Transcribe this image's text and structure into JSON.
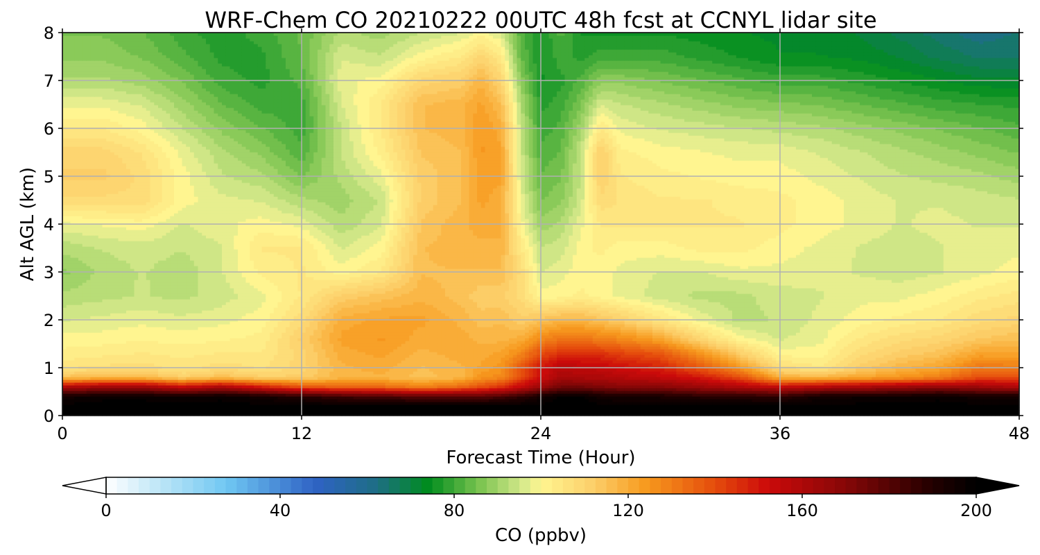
{
  "chart_data": {
    "type": "heatmap",
    "title": "WRF-Chem CO  20210222 00UTC 48h fcst at CCNYL lidar site",
    "xlabel": "Forecast Time (Hour)",
    "ylabel": "Alt AGL (km)",
    "xlim": [
      0,
      48
    ],
    "ylim": [
      0,
      8
    ],
    "x_ticks": [
      "0",
      "12",
      "24",
      "36",
      "48"
    ],
    "y_ticks": [
      "0",
      "1",
      "2",
      "3",
      "4",
      "5",
      "6",
      "7",
      "8"
    ],
    "grid": true,
    "colorbar": {
      "label": "CO  (ppbv)",
      "ticks": [
        "0",
        "40",
        "80",
        "120",
        "160",
        "200"
      ],
      "range": [
        0,
        200
      ],
      "extend": "both",
      "stops": [
        {
          "value": 0,
          "color": "#ffffff"
        },
        {
          "value": 12,
          "color": "#bfe6f7"
        },
        {
          "value": 28,
          "color": "#6ec6f2"
        },
        {
          "value": 48,
          "color": "#2f62c4"
        },
        {
          "value": 62,
          "color": "#1e6e86"
        },
        {
          "value": 74,
          "color": "#008c1e"
        },
        {
          "value": 86,
          "color": "#7cc450"
        },
        {
          "value": 96,
          "color": "#d8ea8c"
        },
        {
          "value": 100,
          "color": "#fff590"
        },
        {
          "value": 112,
          "color": "#fccf6a"
        },
        {
          "value": 124,
          "color": "#f79a1e"
        },
        {
          "value": 140,
          "color": "#e54c0c"
        },
        {
          "value": 152,
          "color": "#cc0a0a"
        },
        {
          "value": 170,
          "color": "#860707"
        },
        {
          "value": 190,
          "color": "#220000"
        },
        {
          "value": 200,
          "color": "#000000"
        }
      ]
    },
    "x": [
      0,
      2,
      4,
      6,
      8,
      10,
      12,
      14,
      16,
      18,
      20,
      21,
      22,
      23,
      24,
      25,
      26,
      27,
      28,
      30,
      32,
      34,
      36,
      38,
      40,
      42,
      44,
      46,
      48
    ],
    "y": [
      0,
      0.2,
      0.4,
      0.6,
      0.8,
      1.0,
      1.3,
      1.6,
      2.0,
      2.5,
      3.0,
      3.5,
      4.0,
      4.5,
      5.0,
      5.5,
      6.0,
      6.5,
      7.0,
      7.5,
      8.0
    ],
    "z": [
      [
        200,
        200,
        200,
        200,
        200,
        200,
        200,
        200,
        200,
        200,
        200,
        200,
        200,
        200,
        200,
        200,
        200,
        200,
        200,
        200,
        200,
        200,
        200,
        200,
        200,
        200,
        200,
        200,
        200
      ],
      [
        200,
        200,
        200,
        200,
        200,
        200,
        200,
        200,
        200,
        200,
        200,
        200,
        200,
        200,
        200,
        200,
        200,
        200,
        200,
        200,
        200,
        200,
        200,
        200,
        200,
        200,
        200,
        200,
        200
      ],
      [
        195,
        198,
        198,
        196,
        198,
        195,
        190,
        185,
        183,
        180,
        180,
        180,
        183,
        188,
        195,
        200,
        200,
        195,
        193,
        193,
        190,
        190,
        188,
        195,
        196,
        196,
        198,
        195,
        195
      ],
      [
        160,
        165,
        165,
        155,
        162,
        150,
        140,
        135,
        135,
        130,
        135,
        140,
        145,
        155,
        165,
        175,
        175,
        172,
        170,
        170,
        165,
        160,
        155,
        160,
        162,
        165,
        168,
        165,
        160
      ],
      [
        115,
        118,
        118,
        112,
        116,
        112,
        112,
        118,
        118,
        115,
        118,
        125,
        128,
        140,
        152,
        162,
        160,
        160,
        158,
        155,
        150,
        140,
        120,
        118,
        122,
        125,
        130,
        140,
        140
      ],
      [
        106,
        107,
        108,
        105,
        108,
        106,
        110,
        118,
        120,
        116,
        118,
        122,
        125,
        138,
        150,
        158,
        156,
        155,
        152,
        148,
        138,
        125,
        108,
        104,
        112,
        118,
        122,
        132,
        130
      ],
      [
        102,
        103,
        104,
        103,
        104,
        104,
        110,
        120,
        122,
        118,
        120,
        120,
        122,
        128,
        140,
        145,
        145,
        145,
        142,
        138,
        125,
        112,
        100,
        100,
        108,
        112,
        115,
        122,
        122
      ],
      [
        100,
        100,
        101,
        100,
        101,
        102,
        112,
        122,
        124,
        120,
        120,
        118,
        118,
        120,
        128,
        132,
        132,
        130,
        128,
        122,
        110,
        100,
        96,
        98,
        104,
        108,
        110,
        114,
        116
      ],
      [
        96,
        97,
        98,
        97,
        98,
        100,
        108,
        120,
        122,
        122,
        118,
        115,
        116,
        112,
        115,
        118,
        118,
        115,
        112,
        105,
        98,
        93,
        94,
        97,
        100,
        102,
        104,
        108,
        110
      ],
      [
        92,
        93,
        94,
        93,
        95,
        98,
        104,
        112,
        115,
        118,
        115,
        112,
        112,
        108,
        100,
        100,
        102,
        100,
        98,
        95,
        93,
        93,
        95,
        96,
        98,
        98,
        100,
        103,
        105
      ],
      [
        88,
        92,
        94,
        92,
        96,
        102,
        104,
        100,
        104,
        116,
        116,
        116,
        116,
        108,
        96,
        98,
        100,
        100,
        98,
        96,
        96,
        98,
        98,
        97,
        96,
        95,
        96,
        98,
        100
      ],
      [
        92,
        94,
        95,
        94,
        96,
        104,
        104,
        96,
        100,
        116,
        118,
        118,
        118,
        104,
        94,
        95,
        100,
        102,
        100,
        100,
        102,
        102,
        100,
        98,
        96,
        95,
        96,
        98,
        98
      ],
      [
        98,
        99,
        100,
        96,
        98,
        100,
        98,
        92,
        96,
        114,
        118,
        120,
        120,
        100,
        90,
        92,
        98,
        104,
        104,
        104,
        104,
        104,
        102,
        100,
        98,
        96,
        97,
        96,
        96
      ],
      [
        108,
        108,
        108,
        100,
        97,
        96,
        92,
        90,
        94,
        112,
        116,
        122,
        120,
        98,
        86,
        88,
        95,
        108,
        106,
        104,
        104,
        103,
        102,
        100,
        98,
        96,
        96,
        95,
        94
      ],
      [
        112,
        112,
        108,
        100,
        94,
        92,
        86,
        92,
        98,
        112,
        116,
        122,
        122,
        96,
        84,
        86,
        94,
        112,
        104,
        102,
        101,
        100,
        100,
        98,
        96,
        94,
        93,
        92,
        90
      ],
      [
        110,
        110,
        106,
        98,
        92,
        88,
        82,
        94,
        102,
        114,
        116,
        124,
        122,
        95,
        82,
        84,
        94,
        112,
        102,
        100,
        99,
        98,
        98,
        96,
        94,
        92,
        90,
        88,
        86
      ],
      [
        104,
        104,
        100,
        94,
        88,
        84,
        80,
        94,
        104,
        116,
        118,
        124,
        120,
        94,
        80,
        82,
        90,
        104,
        98,
        96,
        95,
        94,
        93,
        92,
        90,
        88,
        86,
        84,
        82
      ],
      [
        98,
        98,
        96,
        90,
        84,
        80,
        80,
        96,
        104,
        116,
        118,
        122,
        116,
        92,
        78,
        80,
        86,
        96,
        94,
        92,
        90,
        88,
        87,
        86,
        84,
        82,
        80,
        79,
        78
      ],
      [
        92,
        92,
        90,
        86,
        80,
        78,
        82,
        98,
        100,
        110,
        112,
        118,
        110,
        88,
        76,
        78,
        82,
        88,
        88,
        86,
        84,
        82,
        80,
        80,
        78,
        76,
        74,
        72,
        72
      ],
      [
        88,
        88,
        86,
        82,
        78,
        78,
        84,
        96,
        94,
        100,
        104,
        110,
        104,
        84,
        76,
        80,
        78,
        80,
        80,
        80,
        78,
        76,
        74,
        74,
        73,
        71,
        68,
        66,
        66
      ],
      [
        86,
        86,
        84,
        80,
        77,
        80,
        84,
        92,
        90,
        94,
        96,
        100,
        96,
        82,
        76,
        82,
        76,
        76,
        76,
        76,
        75,
        74,
        73,
        72,
        71,
        68,
        65,
        62,
        64
      ]
    ]
  }
}
